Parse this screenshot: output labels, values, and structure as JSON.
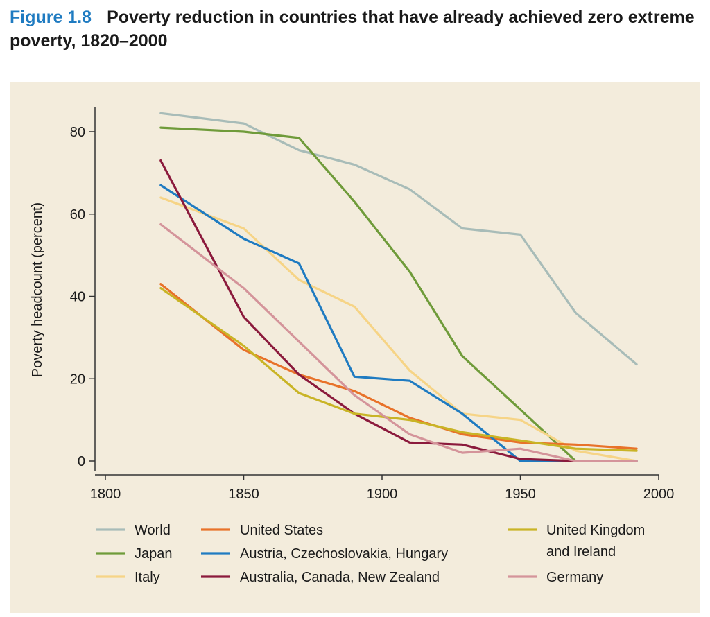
{
  "figure": {
    "label": "Figure 1.8",
    "title": "Poverty reduction in countries that have already achieved zero extreme poverty, 1820–2000"
  },
  "chart_data": {
    "type": "line",
    "title": "",
    "xlabel": "",
    "ylabel": "Poverty headcount (percent)",
    "xlim": [
      1800,
      2000
    ],
    "ylim": [
      0,
      85
    ],
    "xticks": [
      1800,
      1850,
      1900,
      1950,
      2000
    ],
    "yticks": [
      0,
      20,
      40,
      60,
      80
    ],
    "grid": false,
    "legend_placement": "bottom",
    "background": "#f3ecdc",
    "series": [
      {
        "name": "World",
        "color": "#a8bcb8",
        "x": [
          1820,
          1850,
          1870,
          1890,
          1910,
          1929,
          1950,
          1970,
          1992
        ],
        "y": [
          84.5,
          82,
          75.5,
          72,
          66,
          56.5,
          55,
          36,
          23.5
        ]
      },
      {
        "name": "Japan",
        "color": "#6f9b3a",
        "x": [
          1820,
          1850,
          1870,
          1890,
          1910,
          1929,
          1950,
          1970
        ],
        "y": [
          81,
          80,
          78.5,
          63,
          46,
          25.5,
          12.5,
          0
        ]
      },
      {
        "name": "Italy",
        "color": "#f6d486",
        "x": [
          1820,
          1850,
          1870,
          1890,
          1910,
          1929,
          1950,
          1970,
          1992
        ],
        "y": [
          64,
          56.5,
          44,
          37.5,
          22,
          11.5,
          10,
          2.5,
          0
        ]
      },
      {
        "name": "United States",
        "color": "#e8722a",
        "x": [
          1820,
          1850,
          1870,
          1890,
          1910,
          1929,
          1950,
          1970,
          1992
        ],
        "y": [
          43,
          27,
          21,
          17,
          10.5,
          6.5,
          4.5,
          4,
          3
        ]
      },
      {
        "name": "Austria, Czechoslovakia, Hungary",
        "color": "#1f7bc1",
        "x": [
          1820,
          1850,
          1870,
          1890,
          1910,
          1929,
          1950,
          1970,
          1992
        ],
        "y": [
          67,
          54,
          48,
          20.5,
          19.5,
          11.5,
          0,
          0,
          0
        ]
      },
      {
        "name": "Australia, Canada, New Zealand",
        "color": "#8b1a3c",
        "x": [
          1820,
          1850,
          1870,
          1890,
          1910,
          1929,
          1950,
          1970,
          1992
        ],
        "y": [
          73,
          35,
          21,
          11.5,
          4.5,
          4,
          0.5,
          0,
          0
        ]
      },
      {
        "name": "United Kingdom and Ireland",
        "color": "#c9b426",
        "x": [
          1820,
          1850,
          1870,
          1890,
          1910,
          1929,
          1950,
          1970,
          1992
        ],
        "y": [
          42,
          28,
          16.5,
          11.5,
          10,
          7,
          5,
          3,
          2.5
        ]
      },
      {
        "name": "Germany",
        "color": "#d4949a",
        "x": [
          1820,
          1850,
          1870,
          1890,
          1910,
          1929,
          1950,
          1970,
          1992
        ],
        "y": [
          57.5,
          42,
          29,
          16,
          6.5,
          2,
          3,
          0,
          0
        ]
      }
    ]
  },
  "legend": {
    "items": [
      {
        "key": "world",
        "lines": [
          "World"
        ],
        "color": "#a8bcb8"
      },
      {
        "key": "japan",
        "lines": [
          "Japan"
        ],
        "color": "#6f9b3a"
      },
      {
        "key": "italy",
        "lines": [
          "Italy"
        ],
        "color": "#f6d486"
      },
      {
        "key": "united-states",
        "lines": [
          "United States"
        ],
        "color": "#e8722a"
      },
      {
        "key": "austria-czechoslovakia-hungary",
        "lines": [
          "Austria, Czechoslovakia, Hungary"
        ],
        "color": "#1f7bc1"
      },
      {
        "key": "australia-canada-new-zealand",
        "lines": [
          "Australia, Canada, New Zealand"
        ],
        "color": "#8b1a3c"
      },
      {
        "key": "united-kingdom-and-ireland",
        "lines": [
          "United Kingdom",
          "and Ireland"
        ],
        "color": "#c9b426"
      },
      {
        "key": "germany",
        "lines": [
          "Germany"
        ],
        "color": "#d4949a"
      }
    ]
  }
}
